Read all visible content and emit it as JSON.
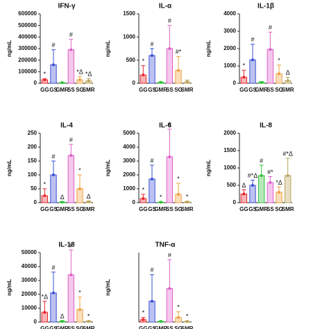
{
  "chart_data": [
    {
      "type": "bar",
      "title": "IFN-γ",
      "y_label": "ng/mL",
      "categories": [
        "GG",
        "GS",
        "GMR",
        "SS",
        "SG",
        "SMR"
      ],
      "colors": [
        "#e8262b",
        "#3b4fd6",
        "#2fbf3a",
        "#e05fc8",
        "#f0a040",
        "#b9a35a"
      ],
      "values": [
        30000,
        160000,
        5000,
        290000,
        30000,
        20000
      ],
      "errors": [
        10000,
        130000,
        3000,
        90000,
        30000,
        20000
      ],
      "annotations": [
        "*",
        "#",
        null,
        "#",
        "*Δ",
        "*Δ"
      ],
      "ylim": [
        0,
        600000
      ],
      "yticks": [
        0,
        100000,
        200000,
        300000,
        400000,
        500000,
        600000
      ]
    },
    {
      "type": "bar",
      "title": "IL-α",
      "y_label": "ng/mL",
      "categories": [
        "GG",
        "GS",
        "GMR",
        "SS",
        "SG",
        "SMR"
      ],
      "colors": [
        "#e8262b",
        "#3b4fd6",
        "#2fbf3a",
        "#e05fc8",
        "#f0a040",
        "#b9a35a"
      ],
      "values": [
        180,
        600,
        20,
        750,
        280,
        30
      ],
      "errors": [
        200,
        150,
        10,
        500,
        300,
        40
      ],
      "annotations": [
        "*",
        "#",
        null,
        "#",
        "#*",
        null
      ],
      "ylim": [
        0,
        1500
      ],
      "yticks": [
        0,
        500,
        1000,
        1500
      ]
    },
    {
      "type": "bar",
      "title": "IL-1β",
      "y_label": "ng/mL",
      "categories": [
        "GG",
        "GS",
        "GMR",
        "SS",
        "SG",
        "SMR"
      ],
      "colors": [
        "#e8262b",
        "#3b4fd6",
        "#2fbf3a",
        "#e05fc8",
        "#f0a040",
        "#b9a35a"
      ],
      "values": [
        350,
        1350,
        50,
        1950,
        550,
        150
      ],
      "errors": [
        400,
        900,
        50,
        1000,
        500,
        200
      ],
      "annotations": [
        "*",
        "#",
        null,
        "#",
        "*",
        "Δ"
      ],
      "ylim": [
        0,
        4000
      ],
      "yticks": [
        0,
        1000,
        2000,
        3000,
        4000
      ]
    },
    {
      "type": "bar",
      "title": "IL-4",
      "y_label": "ng/mL",
      "categories": [
        "GG",
        "GS",
        "GMR",
        "SS",
        "SG",
        "SMR"
      ],
      "colors": [
        "#e8262b",
        "#3b4fd6",
        "#2fbf3a",
        "#e05fc8",
        "#f0a040",
        "#b9a35a"
      ],
      "values": [
        25,
        100,
        2,
        170,
        50,
        3
      ],
      "errors": [
        25,
        50,
        2,
        40,
        50,
        3
      ],
      "annotations": [
        "*",
        "#",
        "Δ",
        "#",
        "*",
        "Δ"
      ],
      "ylim": [
        0,
        250
      ],
      "yticks": [
        0,
        50,
        100,
        150,
        200,
        250
      ]
    },
    {
      "type": "bar",
      "title": "IL-6",
      "y_label": "ng/mL",
      "categories": [
        "GG",
        "GS",
        "GMR",
        "SS",
        "SG",
        "SMR"
      ],
      "colors": [
        "#e8262b",
        "#3b4fd6",
        "#2fbf3a",
        "#e05fc8",
        "#f0a040",
        "#b9a35a"
      ],
      "values": [
        300,
        1700,
        30,
        3300,
        600,
        50
      ],
      "errors": [
        300,
        1000,
        30,
        2000,
        800,
        50
      ],
      "annotations": [
        "*",
        "#",
        "*",
        "#",
        "*",
        "*"
      ],
      "ylim": [
        0,
        5000
      ],
      "yticks": [
        0,
        1000,
        2000,
        3000,
        4000,
        5000
      ]
    },
    {
      "type": "bar",
      "title": "IL-8",
      "y_label": "ng/mL",
      "categories": [
        "GG",
        "GS",
        "GMR",
        "SS",
        "SG",
        "SMR"
      ],
      "colors": [
        "#e8262b",
        "#3b4fd6",
        "#2fbf3a",
        "#e05fc8",
        "#f0a040",
        "#b9a35a"
      ],
      "values": [
        250,
        500,
        780,
        580,
        300,
        780
      ],
      "errors": [
        120,
        150,
        300,
        170,
        150,
        500
      ],
      "annotations": [
        "Δ",
        "#*Δ",
        "#",
        "#*",
        "*Δ",
        "#*Δ"
      ],
      "ylim": [
        0,
        2000
      ],
      "yticks": [
        0,
        500,
        1000,
        1500,
        2000
      ]
    },
    {
      "type": "bar",
      "title": "IL-18",
      "y_label": "ng/mL",
      "categories": [
        "GG",
        "GS",
        "GMR",
        "SS",
        "SG",
        "SMR"
      ],
      "colors": [
        "#e8262b",
        "#3b4fd6",
        "#2fbf3a",
        "#e05fc8",
        "#f0a040",
        "#b9a35a"
      ],
      "values": [
        7000,
        21000,
        500,
        34000,
        9000,
        500
      ],
      "errors": [
        8000,
        15000,
        500,
        18000,
        9000,
        500
      ],
      "annotations": [
        "*Δ",
        "#",
        "Δ",
        "#",
        "*",
        "*"
      ],
      "ylim": [
        0,
        50000
      ],
      "yticks": [
        0,
        10000,
        20000,
        30000,
        40000,
        50000
      ]
    },
    {
      "type": "bar",
      "title": "TNF-α",
      "y_label": "ng/mL",
      "categories": [
        "GG",
        "GS",
        "GMR",
        "SS",
        "SG",
        "SMR"
      ],
      "colors": [
        "#e8262b",
        "#3b4fd6",
        "#2fbf3a",
        "#e05fc8",
        "#f0a040",
        "#b9a35a"
      ],
      "values": [
        200,
        1800,
        50,
        2900,
        400,
        50
      ],
      "errors": [
        200,
        2300,
        50,
        2500,
        500,
        50
      ],
      "annotations": [
        "*",
        "#",
        null,
        "#",
        "*",
        "*"
      ],
      "ylim": [
        0,
        6000
      ]
    }
  ]
}
